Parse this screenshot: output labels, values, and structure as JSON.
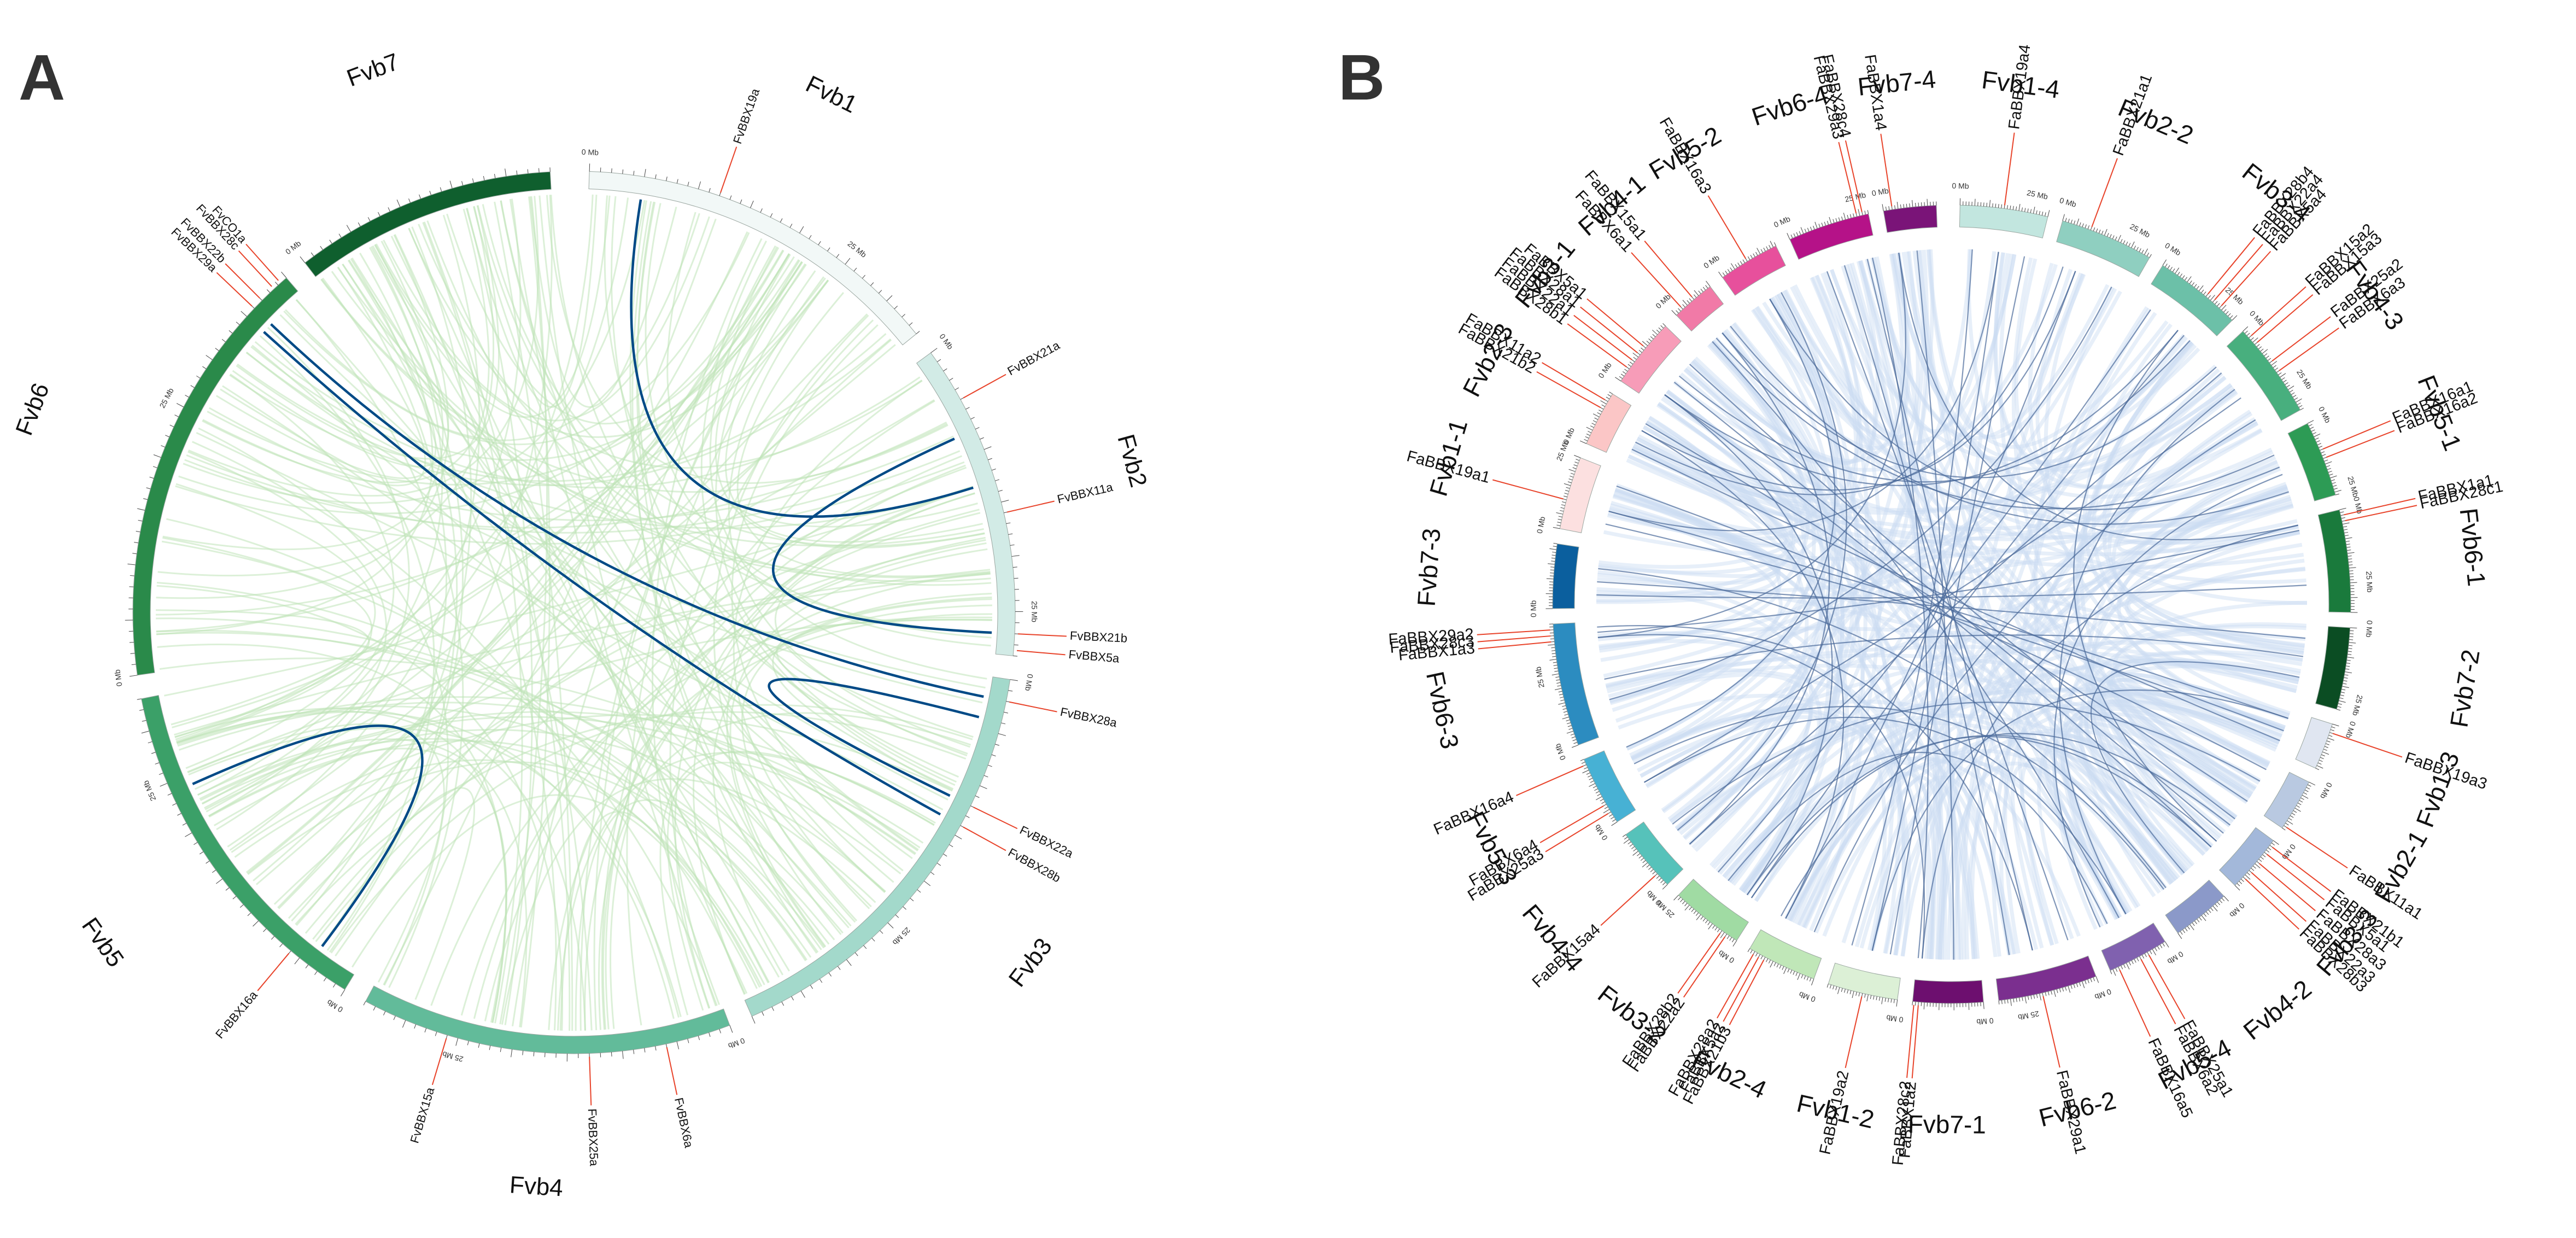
{
  "panels": {
    "a": {
      "letter": "A",
      "colors": {
        "accent": "#004a86",
        "bg_link": "#bfe3b8",
        "gene_line": "#e8432a"
      },
      "chromosomes": [
        {
          "name": "Fvb1",
          "size": 34,
          "color": "#f2f8f7"
        },
        {
          "name": "Fvb2",
          "size": 29,
          "color": "#d2ebe6"
        },
        {
          "name": "Fvb3",
          "size": 40,
          "color": "#a3d9cb"
        },
        {
          "name": "Fvb4",
          "size": 34,
          "color": "#62bb9a"
        },
        {
          "name": "Fvb5",
          "size": 33,
          "color": "#3ba068"
        },
        {
          "name": "Fvb6",
          "size": 40,
          "color": "#2a8a4a"
        },
        {
          "name": "Fvb7",
          "size": 24,
          "color": "#0f5f2e"
        }
      ],
      "genes": [
        {
          "name": "FvBBX19a",
          "chr": 0,
          "pos": 12
        },
        {
          "name": "FvBBX21a",
          "chr": 1,
          "pos": 5
        },
        {
          "name": "FvBBX11a",
          "chr": 1,
          "pos": 16
        },
        {
          "name": "FvBBX21b",
          "chr": 1,
          "pos": 27
        },
        {
          "name": "FvBBX5a",
          "chr": 1,
          "pos": 28.5
        },
        {
          "name": "FvBBX28a",
          "chr": 2,
          "pos": 2
        },
        {
          "name": "FvBBX22a",
          "chr": 2,
          "pos": 12
        },
        {
          "name": "FvBBX28b",
          "chr": 2,
          "pos": 14
        },
        {
          "name": "FvBBX6a",
          "chr": 3,
          "pos": 6
        },
        {
          "name": "FvBBX25a",
          "chr": 3,
          "pos": 13
        },
        {
          "name": "FvBBX15a",
          "chr": 3,
          "pos": 26
        },
        {
          "name": "FvBBX16a",
          "chr": 4,
          "pos": 6
        },
        {
          "name": "FvBBX29a",
          "chr": 5,
          "pos": 36
        },
        {
          "name": "FvBBX22b",
          "chr": 5,
          "pos": 37
        },
        {
          "name": "FvBBX28c",
          "chr": 5,
          "pos": 38.5
        },
        {
          "name": "FvCO1a",
          "chr": 5,
          "pos": 39.3
        }
      ],
      "highlight_links": [
        [
          0,
          5,
          1,
          13
        ],
        [
          1,
          8,
          1,
          27
        ],
        [
          2,
          4,
          2,
          12
        ],
        [
          5,
          36,
          2,
          2
        ],
        [
          5,
          35,
          2,
          14
        ],
        [
          4,
          4,
          4,
          24
        ]
      ],
      "bg_link_count": 190
    },
    "b": {
      "letter": "B",
      "colors": {
        "accent": "#4a6a9a",
        "bg_link": "#c9dcf2",
        "gene_line": "#e8432a"
      },
      "chromosomes": [
        {
          "name": "Fvb1-4",
          "size": 30,
          "color": "#c2e6df"
        },
        {
          "name": "Fvb2-2",
          "size": 32,
          "color": "#8fcfc0"
        },
        {
          "name": "Fvb3-4",
          "size": 30,
          "color": "#6cc0a8"
        },
        {
          "name": "Fvb4-3",
          "size": 33,
          "color": "#48af7e"
        },
        {
          "name": "Fvb5-1",
          "size": 26,
          "color": "#2d9b55"
        },
        {
          "name": "Fvb6-1",
          "size": 35,
          "color": "#1a7a3c"
        },
        {
          "name": "Fvb7-2",
          "size": 28,
          "color": "#0b4d23"
        },
        {
          "name": "Fvb1-3",
          "size": 16,
          "color": "#e0e6f1"
        },
        {
          "name": "Fvb2-1",
          "size": 18,
          "color": "#b9c9e1"
        },
        {
          "name": "Fvb3-3",
          "size": 20,
          "color": "#a3b8da"
        },
        {
          "name": "Fvb4-2",
          "size": 20,
          "color": "#8b99c9"
        },
        {
          "name": "Fvb5-4",
          "size": 21,
          "color": "#8061af"
        },
        {
          "name": "Fvb6-2",
          "size": 34,
          "color": "#7b2f8f"
        },
        {
          "name": "Fvb7-1",
          "size": 24,
          "color": "#6d0f6f"
        },
        {
          "name": "Fvb1-2",
          "size": 24,
          "color": "#dcf0d6"
        },
        {
          "name": "Fvb2-4",
          "size": 24,
          "color": "#c0e7b8"
        },
        {
          "name": "Fvb3-2",
          "size": 25,
          "color": "#a0dba3"
        },
        {
          "name": "Fvb4-4",
          "size": 22,
          "color": "#56c2ba"
        },
        {
          "name": "Fvb5-3",
          "size": 24,
          "color": "#47b1d4"
        },
        {
          "name": "Fvb6-3",
          "size": 42,
          "color": "#2c8cc0"
        },
        {
          "name": "Fvb7-3",
          "size": 22,
          "color": "#0b5f9e"
        },
        {
          "name": "Fvb1-1",
          "size": 25,
          "color": "#fce0e0"
        },
        {
          "name": "Fvb2-3",
          "size": 19,
          "color": "#fbc6c6"
        },
        {
          "name": "Fvb3-1",
          "size": 24,
          "color": "#f79cb8"
        },
        {
          "name": "Fvb4-1",
          "size": 15,
          "color": "#f17aa7"
        },
        {
          "name": "Fvb5-2",
          "size": 21,
          "color": "#e7509c"
        },
        {
          "name": "Fvb6-4",
          "size": 28,
          "color": "#b51288"
        },
        {
          "name": "Fvb7-4",
          "size": 18,
          "color": "#7a1478"
        }
      ],
      "genes": [
        {
          "name": "FaBBX19a4",
          "chr": 0,
          "pos": 15
        },
        {
          "name": "FaBBX21a1",
          "chr": 1,
          "pos": 10
        },
        {
          "name": "FaBBX28b4",
          "chr": 2,
          "pos": 18
        },
        {
          "name": "FaBBX22a4",
          "chr": 2,
          "pos": 21
        },
        {
          "name": "FaBBX5a4",
          "chr": 2,
          "pos": 24
        },
        {
          "name": "FaBBX15a2",
          "chr": 3,
          "pos": 3
        },
        {
          "name": "FaBBX15a3",
          "chr": 3,
          "pos": 6
        },
        {
          "name": "FaBBX25a2",
          "chr": 3,
          "pos": 14
        },
        {
          "name": "FaBBX6a3",
          "chr": 3,
          "pos": 18
        },
        {
          "name": "FaBBX16a1",
          "chr": 4,
          "pos": 10
        },
        {
          "name": "FaBBX16a2",
          "chr": 4,
          "pos": 13
        },
        {
          "name": "FaBBX1a1",
          "chr": 5,
          "pos": 2
        },
        {
          "name": "FaBBX28c1",
          "chr": 5,
          "pos": 4
        },
        {
          "name": "FaBBX19a3",
          "chr": 7,
          "pos": 3
        },
        {
          "name": "FaBBX11a1",
          "chr": 8,
          "pos": 17
        },
        {
          "name": "FaBBX21b1",
          "chr": 9,
          "pos": 2
        },
        {
          "name": "FaBBX5a1",
          "chr": 9,
          "pos": 5
        },
        {
          "name": "FaBBX28a3",
          "chr": 9,
          "pos": 9
        },
        {
          "name": "FaBBX22a3",
          "chr": 9,
          "pos": 13
        },
        {
          "name": "FaBBX28b3",
          "chr": 9,
          "pos": 16
        },
        {
          "name": "FaBBX25a1",
          "chr": 11,
          "pos": 7
        },
        {
          "name": "FaBBX6a2",
          "chr": 11,
          "pos": 10
        },
        {
          "name": "FaBBX16a5",
          "chr": 11,
          "pos": 18
        },
        {
          "name": "FaBBX29a1",
          "chr": 12,
          "pos": 19
        },
        {
          "name": "FaBBX1a2",
          "chr": 13,
          "pos": 22
        },
        {
          "name": "FaBBX28c2",
          "chr": 13,
          "pos": 23.5
        },
        {
          "name": "FaBBX19a2",
          "chr": 14,
          "pos": 12
        },
        {
          "name": "FaBBX21b3",
          "chr": 15,
          "pos": 18
        },
        {
          "name": "FaBBX5a2",
          "chr": 15,
          "pos": 20
        },
        {
          "name": "FaBBX28a2",
          "chr": 15,
          "pos": 22
        },
        {
          "name": "FaBBX22a2",
          "chr": 16,
          "pos": 4
        },
        {
          "name": "FaBBX28b2",
          "chr": 16,
          "pos": 6
        },
        {
          "name": "FaBBX15a4",
          "chr": 17,
          "pos": 5
        },
        {
          "name": "FaBBX25a3",
          "chr": 18,
          "pos": 4
        },
        {
          "name": "FaBBX6a4",
          "chr": 18,
          "pos": 7
        },
        {
          "name": "FaBBX16a4",
          "chr": 18,
          "pos": 22
        },
        {
          "name": "FaBBX1a3",
          "chr": 19,
          "pos": 36
        },
        {
          "name": "FaBBX28c3",
          "chr": 19,
          "pos": 38
        },
        {
          "name": "FaBBX29a2",
          "chr": 19,
          "pos": 40
        },
        {
          "name": "FaBBX19a1",
          "chr": 21,
          "pos": 10
        },
        {
          "name": "FaBBX21b2",
          "chr": 22,
          "pos": 13
        },
        {
          "name": "FaBBX11a2",
          "chr": 22,
          "pos": 16
        },
        {
          "name": "FaBBX28b1",
          "chr": 23,
          "pos": 5
        },
        {
          "name": "FaBBX22a1",
          "chr": 23,
          "pos": 8
        },
        {
          "name": "FaBBX28a1",
          "chr": 23,
          "pos": 11
        },
        {
          "name": "FaBBX5a1",
          "chr": 23,
          "pos": 14
        },
        {
          "name": "FaBBX6a1",
          "chr": 24,
          "pos": 3
        },
        {
          "name": "FaBBX15a1",
          "chr": 24,
          "pos": 8
        },
        {
          "name": "FaBBX16a3",
          "chr": 25,
          "pos": 10
        },
        {
          "name": "FaBBX29a3",
          "chr": 26,
          "pos": 24
        },
        {
          "name": "FaBBX28c4",
          "chr": 26,
          "pos": 26
        },
        {
          "name": "FaBBX1a4",
          "chr": 27,
          "pos": 3
        }
      ],
      "highlight_links": [
        [
          0,
          15,
          14,
          12
        ],
        [
          1,
          10,
          22,
          13
        ],
        [
          1,
          10,
          15,
          18
        ],
        [
          22,
          13,
          15,
          18
        ],
        [
          2,
          18,
          9,
          13
        ],
        [
          2,
          21,
          16,
          4
        ],
        [
          9,
          13,
          16,
          4
        ],
        [
          2,
          24,
          23,
          14
        ],
        [
          3,
          3,
          24,
          8
        ],
        [
          3,
          6,
          17,
          5
        ],
        [
          24,
          8,
          17,
          5
        ],
        [
          3,
          14,
          11,
          7
        ],
        [
          3,
          18,
          18,
          7
        ],
        [
          11,
          7,
          18,
          7
        ],
        [
          4,
          10,
          25,
          10
        ],
        [
          4,
          13,
          11,
          18
        ],
        [
          25,
          10,
          18,
          22
        ],
        [
          5,
          2,
          13,
          22
        ],
        [
          5,
          4,
          19,
          38
        ],
        [
          13,
          22,
          19,
          36
        ],
        [
          7,
          3,
          21,
          10
        ],
        [
          8,
          17,
          22,
          16
        ],
        [
          9,
          5,
          15,
          20
        ],
        [
          9,
          9,
          23,
          11
        ],
        [
          9,
          16,
          16,
          6
        ],
        [
          23,
          5,
          16,
          6
        ],
        [
          11,
          10,
          24,
          3
        ],
        [
          12,
          19,
          26,
          24
        ],
        [
          12,
          19,
          19,
          40
        ],
        [
          13,
          23.5,
          26,
          26
        ],
        [
          27,
          3,
          19,
          36
        ],
        [
          27,
          3,
          5,
          2
        ],
        [
          14,
          12,
          7,
          3
        ],
        [
          0,
          15,
          21,
          10
        ],
        [
          2,
          18,
          23,
          5
        ],
        [
          9,
          16,
          23,
          5
        ],
        [
          6,
          5,
          20,
          10
        ],
        [
          6,
          20,
          10,
          5
        ],
        [
          20,
          15,
          10,
          14
        ],
        [
          1,
          25,
          19,
          12
        ],
        [
          3,
          28,
          15,
          6
        ],
        [
          4,
          20,
          24,
          12
        ],
        [
          12,
          5,
          26,
          8
        ],
        [
          26,
          15,
          12,
          28
        ],
        [
          14,
          5,
          0,
          25
        ],
        [
          17,
          15,
          8,
          8
        ],
        [
          21,
          20,
          8,
          3
        ],
        [
          22,
          5,
          7,
          12
        ],
        [
          5,
          25,
          20,
          5
        ],
        [
          6,
          12,
          19,
          20
        ],
        [
          10,
          15,
          18,
          15
        ],
        [
          11,
          15,
          16,
          15
        ],
        [
          27,
          10,
          13,
          10
        ],
        [
          0,
          5,
          14,
          20
        ],
        [
          2,
          5,
          16,
          20
        ],
        [
          25,
          15,
          17,
          12
        ],
        [
          24,
          5,
          4,
          5
        ],
        [
          23,
          20,
          9,
          2
        ],
        [
          21,
          5,
          7,
          8
        ],
        [
          1,
          5,
          22,
          8
        ]
      ],
      "bg_link_count": 230
    }
  }
}
